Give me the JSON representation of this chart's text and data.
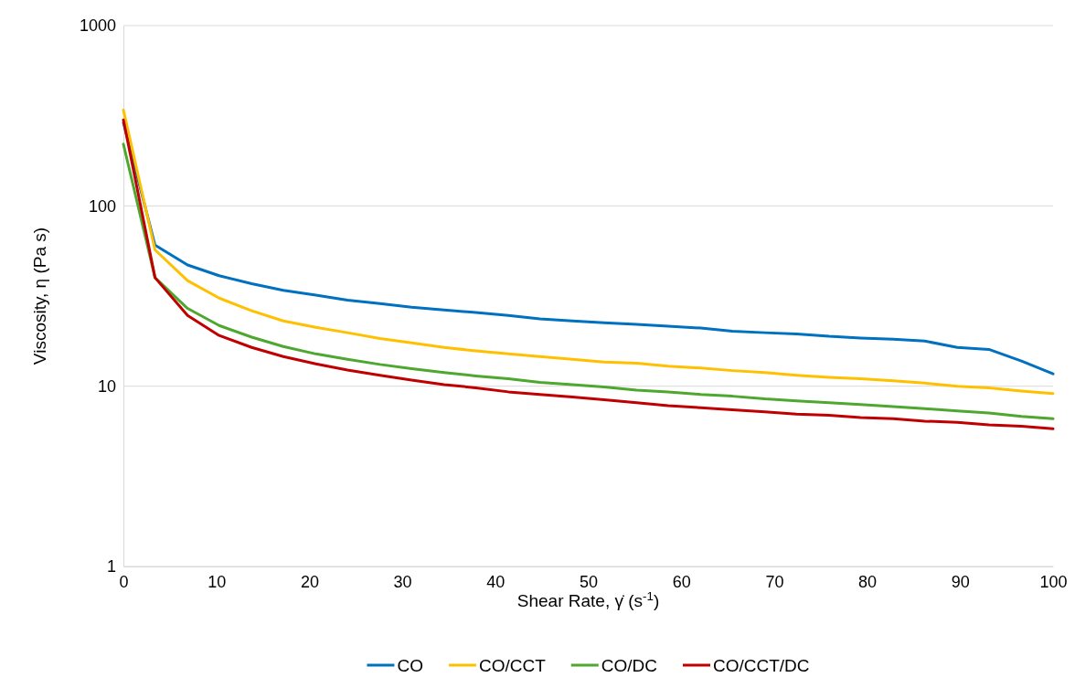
{
  "chart_data": {
    "type": "line",
    "xlabel": "Shear Rate, γ̇ (s$^{-1}$)",
    "ylabel": "Viscosity, η (Pa s)",
    "x": [
      0,
      3.4,
      6.9,
      10.3,
      13.8,
      17.2,
      20.7,
      24.1,
      27.6,
      31,
      34.5,
      37.9,
      41.4,
      44.8,
      48.3,
      51.7,
      55.2,
      58.6,
      62.1,
      65.5,
      69,
      72.4,
      75.9,
      79.3,
      82.8,
      86.2,
      89.7,
      93.1,
      96.6,
      100
    ],
    "series": [
      {
        "name": "CO",
        "color": "#0070c0",
        "values": [
          290,
          60.6,
          47,
          41,
          37,
          34,
          32,
          30,
          28.7,
          27.4,
          26.5,
          25.6,
          24.7,
          23.6,
          23,
          22.5,
          22,
          21.5,
          21,
          20.2,
          19.8,
          19.5,
          18.9,
          18.5,
          18.2,
          17.8,
          16.4,
          16,
          13.8,
          11.7
        ]
      },
      {
        "name": "CO/CCT",
        "color": "#ffc000",
        "values": [
          340,
          57,
          38.5,
          30.8,
          26.2,
          23,
          21.2,
          19.8,
          18.4,
          17.4,
          16.4,
          15.7,
          15.1,
          14.6,
          14.1,
          13.6,
          13.4,
          12.9,
          12.6,
          12.2,
          11.9,
          11.5,
          11.2,
          11,
          10.7,
          10.4,
          10,
          9.8,
          9.4,
          9.1
        ]
      },
      {
        "name": "CO/DC",
        "color": "#4ea72e",
        "values": [
          220,
          40,
          27,
          21.7,
          18.7,
          16.6,
          15.1,
          14.1,
          13.2,
          12.5,
          11.9,
          11.4,
          11,
          10.5,
          10.2,
          9.9,
          9.5,
          9.3,
          9,
          8.8,
          8.5,
          8.3,
          8.1,
          7.9,
          7.7,
          7.5,
          7.3,
          7.1,
          6.8,
          6.6
        ]
      },
      {
        "name": "CO/CCT/DC",
        "color": "#c00000",
        "values": [
          300,
          40,
          24.7,
          19.1,
          16.4,
          14.6,
          13.3,
          12.3,
          11.5,
          10.8,
          10.2,
          9.8,
          9.3,
          9,
          8.7,
          8.4,
          8.1,
          7.8,
          7.6,
          7.4,
          7.2,
          7,
          6.9,
          6.7,
          6.6,
          6.4,
          6.3,
          6.1,
          6,
          5.8
        ]
      }
    ],
    "xlim": [
      0,
      100
    ],
    "xticks": [
      0,
      10,
      20,
      30,
      40,
      50,
      60,
      70,
      80,
      90,
      100
    ],
    "ylim": [
      1,
      1000
    ],
    "yticks": [
      1,
      10,
      100,
      1000
    ],
    "log": true,
    "grid": "y",
    "legend": "bottom",
    "marker": "none",
    "line_style": "solid"
  }
}
